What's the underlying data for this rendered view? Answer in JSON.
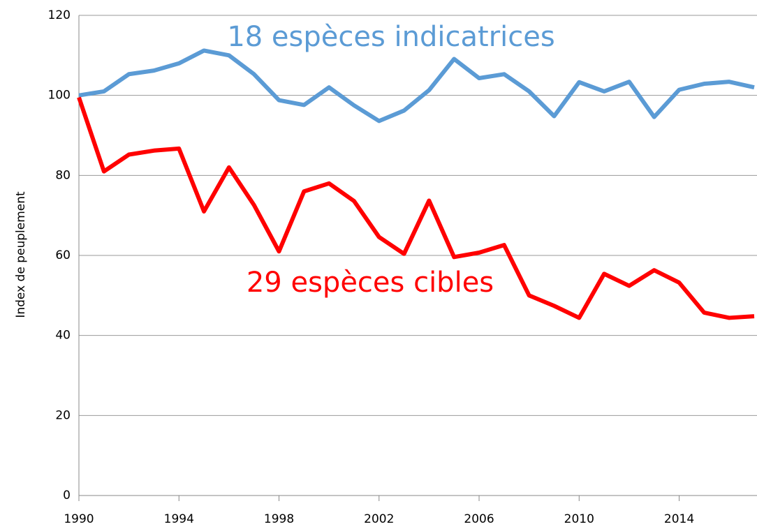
{
  "chart_data": {
    "type": "line",
    "y_label": "Index de peuplement",
    "x": [
      1990,
      1991,
      1992,
      1993,
      1994,
      1995,
      1996,
      1997,
      1998,
      1999,
      2000,
      2001,
      2002,
      2003,
      2004,
      2005,
      2006,
      2007,
      2008,
      2009,
      2010,
      2011,
      2012,
      2013,
      2014,
      2015,
      2016,
      2017
    ],
    "series": [
      {
        "name": "18 espèces indicatrices",
        "color": "#5b9bd5",
        "values": [
          100,
          101,
          105.3,
          106.2,
          108,
          111.2,
          110,
          105.3,
          98.8,
          97.6,
          102,
          97.5,
          93.6,
          96.2,
          101.3,
          109.1,
          104.3,
          105.3,
          101,
          94.8,
          103.3,
          101,
          103.4,
          94.6,
          101.4,
          102.9,
          103.4,
          102
        ]
      },
      {
        "name": "29 espèces cibles",
        "color": "#ff0000",
        "values": [
          99.5,
          81,
          85.2,
          86.2,
          86.7,
          71,
          82,
          72.6,
          61,
          76,
          78,
          73.6,
          64.6,
          60.4,
          73.7,
          59.6,
          60.7,
          62.6,
          50,
          47.4,
          44.4,
          55.4,
          52.4,
          56.3,
          53.2,
          45.7,
          44.4,
          44.8
        ]
      }
    ],
    "xlim": [
      1990,
      2017
    ],
    "xticks": [
      1990,
      1994,
      1998,
      2002,
      2006,
      2010,
      2014
    ],
    "ylim": [
      0,
      120
    ],
    "yticks": [
      0,
      20,
      40,
      60,
      80,
      100,
      120
    ],
    "grid": true
  }
}
